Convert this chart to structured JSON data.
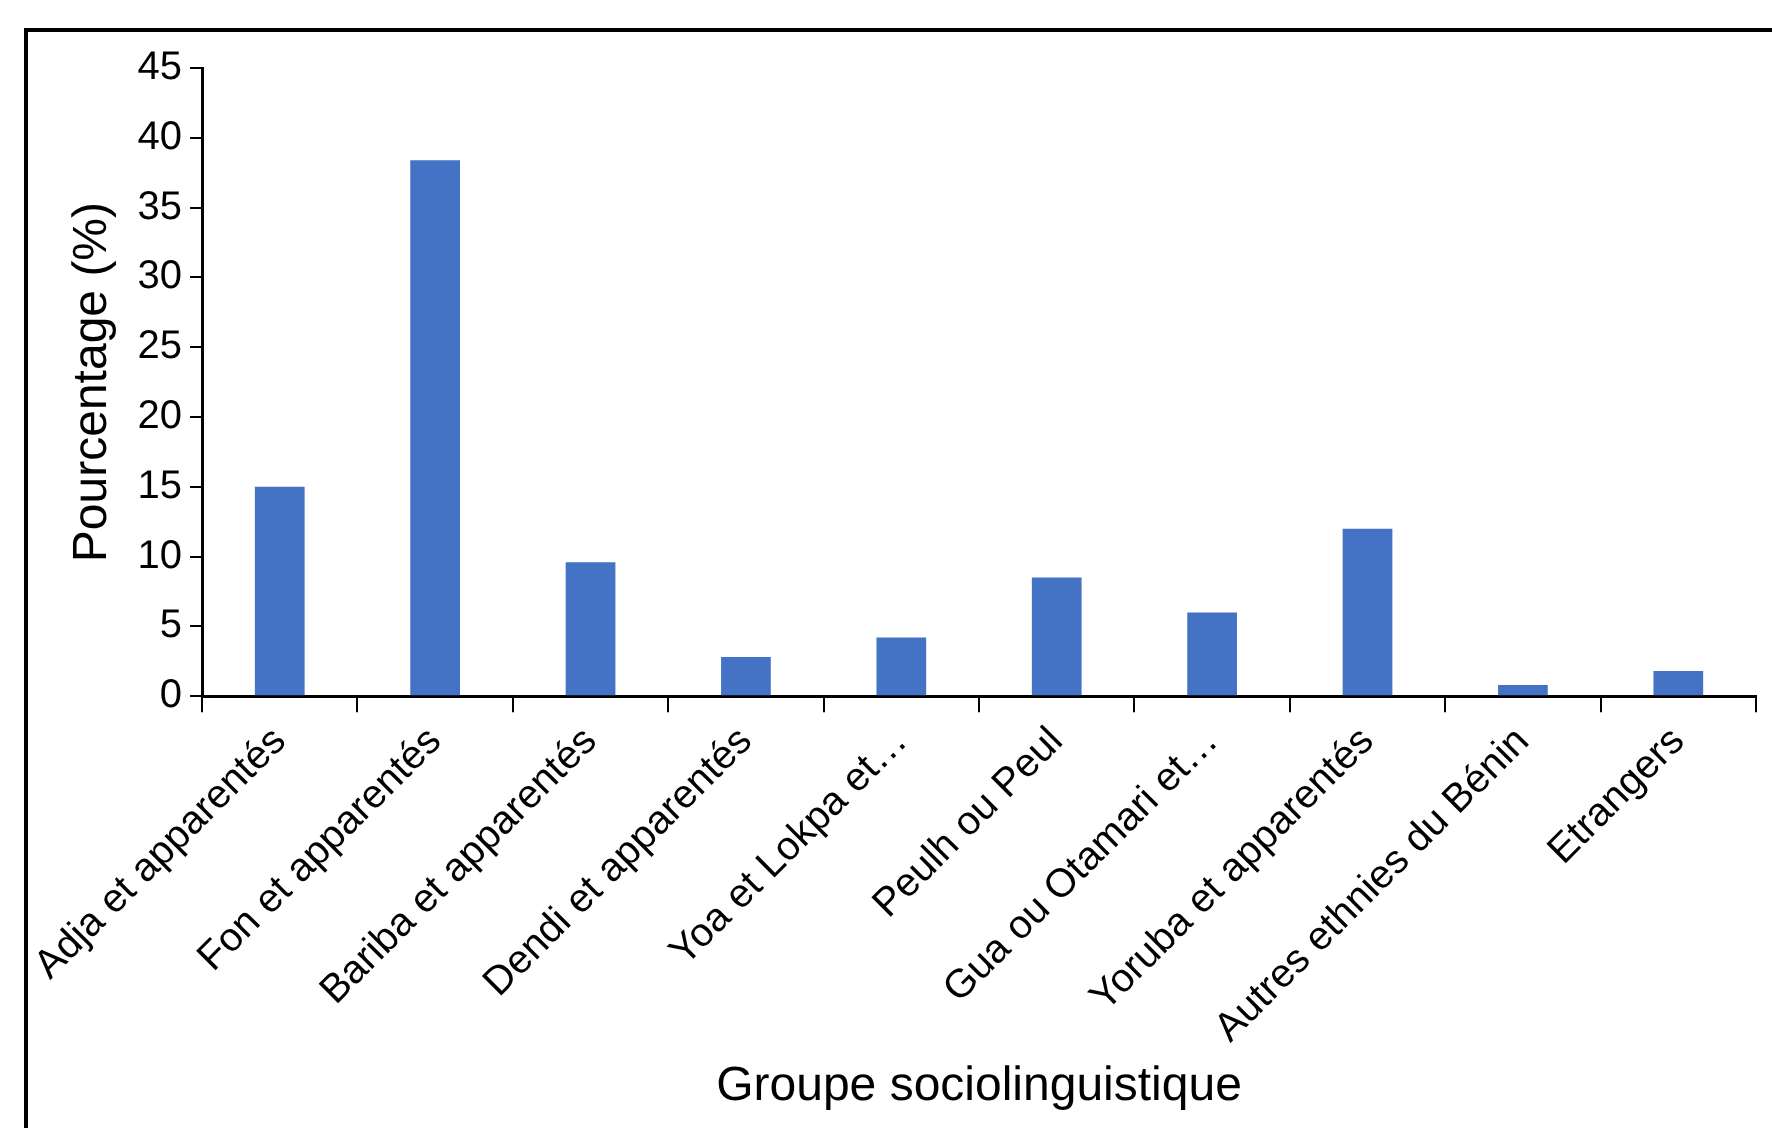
{
  "chart_data": {
    "type": "bar",
    "xlabel": "Groupe sociolinguistique",
    "ylabel": "Pourcentage (%)",
    "categories": [
      "Adja et apparentés",
      "Fon et apparentés",
      "Bariba et apparentés",
      "Dendi et apparentés",
      "Yoa et Lokpa et…",
      "Peulh ou Peul",
      "Gua ou Otamari et…",
      "Yoruba et apparentés",
      "Autres ethnies du Bénin",
      "Etrangers"
    ],
    "values": [
      15.0,
      38.4,
      9.6,
      2.8,
      4.2,
      8.5,
      6.0,
      12.0,
      0.8,
      1.8
    ],
    "color": "#4472c4",
    "ylim": [
      0,
      45
    ],
    "yticks": [
      0,
      5,
      10,
      15,
      20,
      25,
      30,
      35,
      40,
      45
    ],
    "grid": false,
    "legend": false
  }
}
